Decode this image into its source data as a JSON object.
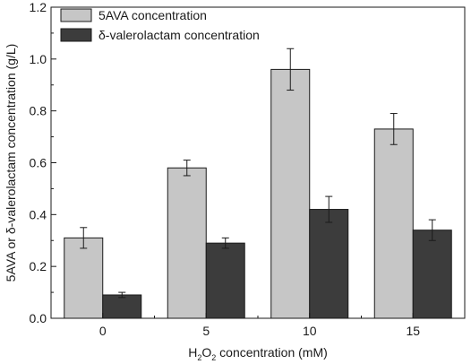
{
  "chart_data": {
    "type": "bar",
    "categories": [
      "0",
      "5",
      "10",
      "15"
    ],
    "series": [
      {
        "name": "5AVA concentration",
        "color": "#c6c6c6",
        "values": [
          0.31,
          0.58,
          0.96,
          0.73
        ],
        "errors": [
          0.04,
          0.03,
          0.08,
          0.06
        ]
      },
      {
        "name": "δ-valerolactam concentration",
        "color": "#3c3c3c",
        "values": [
          0.09,
          0.29,
          0.42,
          0.34
        ],
        "errors": [
          0.01,
          0.02,
          0.05,
          0.04
        ]
      }
    ],
    "xlabel": {
      "pre": "H",
      "sub1": "2",
      "mid": "O",
      "sub2": "2",
      "post": " concentration (mM)"
    },
    "ylabel": "5AVA or δ-valerolactam concentration (g/L)",
    "ylim": [
      0.0,
      1.2
    ],
    "yticks": [
      "0.0",
      "0.2",
      "0.4",
      "0.6",
      "0.8",
      "1.0",
      "1.2"
    ],
    "grid": false,
    "legend_position": "top-left"
  }
}
